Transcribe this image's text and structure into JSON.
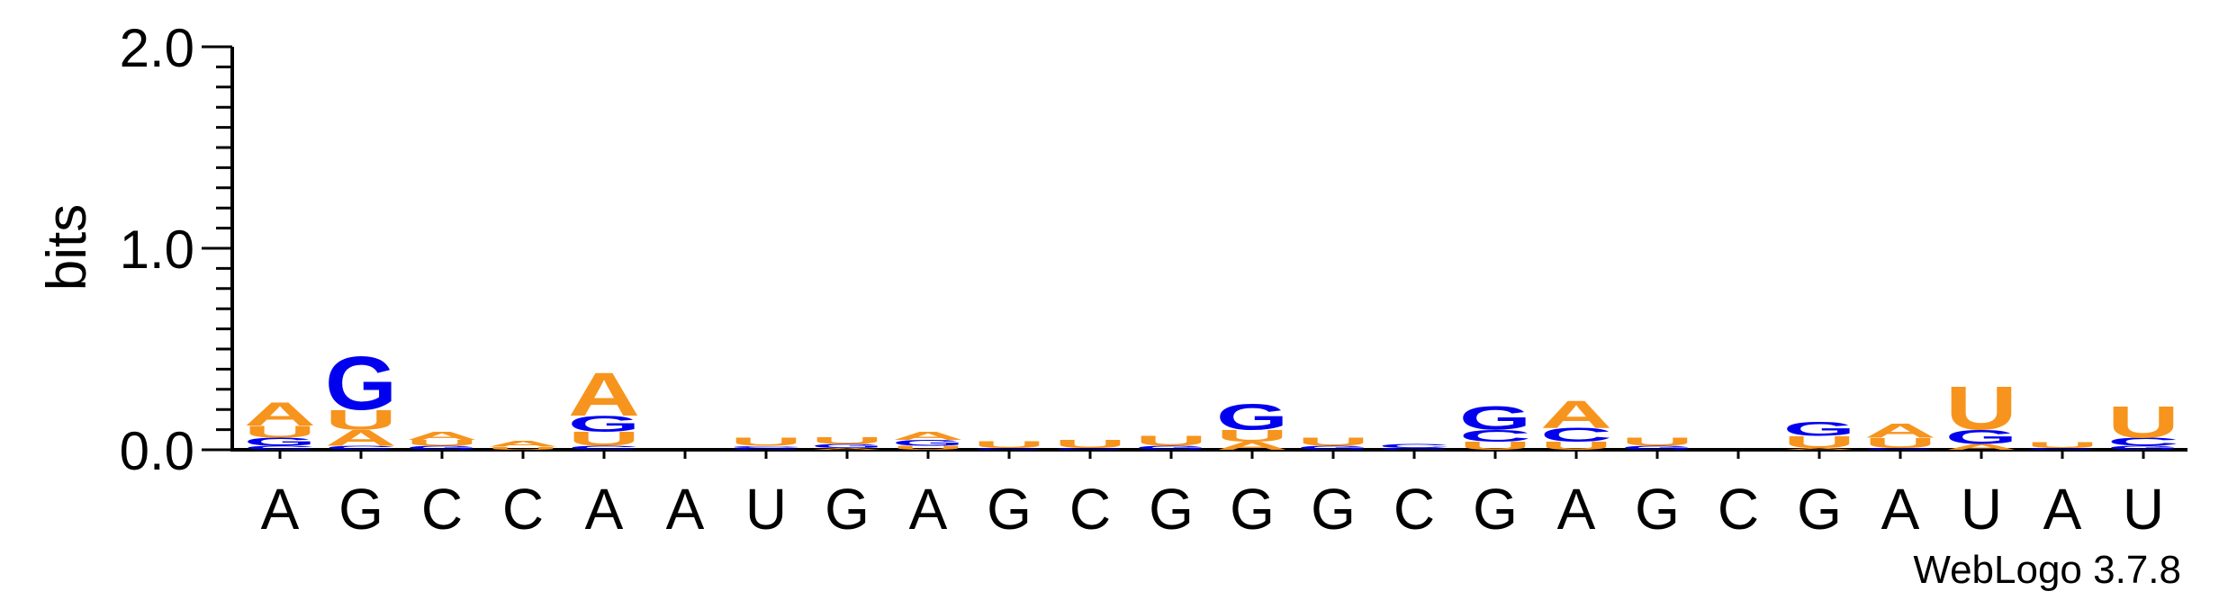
{
  "chart_data": {
    "type": "sequence-logo",
    "ylabel": "bits",
    "ylim": [
      0,
      2.0
    ],
    "yticks": [
      "0.0",
      "1.0",
      "2.0"
    ],
    "credit": "WebLogo 3.7.8",
    "colors": {
      "A": "#f7941d",
      "U": "#f7941d",
      "G": "#0000ee",
      "C": "#0000ee"
    },
    "positions": [
      {
        "label": "A",
        "stack": [
          {
            "l": "C",
            "h": 0.02
          },
          {
            "l": "G",
            "h": 0.04
          },
          {
            "l": "U",
            "h": 0.06
          },
          {
            "l": "A",
            "h": 0.12
          }
        ]
      },
      {
        "label": "G",
        "stack": [
          {
            "l": "C",
            "h": 0.02
          },
          {
            "l": "A",
            "h": 0.08
          },
          {
            "l": "U",
            "h": 0.1
          },
          {
            "l": "G",
            "h": 0.27
          }
        ]
      },
      {
        "label": "C",
        "stack": [
          {
            "l": "G",
            "h": 0.02
          },
          {
            "l": "U",
            "h": 0.03
          },
          {
            "l": "A",
            "h": 0.04
          }
        ]
      },
      {
        "label": "C",
        "stack": [
          {
            "l": "U",
            "h": 0.015
          },
          {
            "l": "A",
            "h": 0.03
          }
        ]
      },
      {
        "label": "A",
        "stack": [
          {
            "l": "C",
            "h": 0.02
          },
          {
            "l": "U",
            "h": 0.07
          },
          {
            "l": "G",
            "h": 0.08
          },
          {
            "l": "A",
            "h": 0.22
          }
        ]
      },
      {
        "label": "A",
        "stack": []
      },
      {
        "label": "U",
        "stack": [
          {
            "l": "G",
            "h": 0.01
          },
          {
            "l": "C",
            "h": 0.01
          },
          {
            "l": "U",
            "h": 0.04
          }
        ]
      },
      {
        "label": "G",
        "stack": [
          {
            "l": "A",
            "h": 0.01
          },
          {
            "l": "G",
            "h": 0.02
          },
          {
            "l": "U",
            "h": 0.035
          }
        ]
      },
      {
        "label": "A",
        "stack": [
          {
            "l": "U",
            "h": 0.02
          },
          {
            "l": "G",
            "h": 0.03
          },
          {
            "l": "A",
            "h": 0.04
          }
        ]
      },
      {
        "label": "G",
        "stack": [
          {
            "l": "G",
            "h": 0.01
          },
          {
            "l": "U",
            "h": 0.035
          }
        ]
      },
      {
        "label": "C",
        "stack": [
          {
            "l": "G",
            "h": 0.01
          },
          {
            "l": "U",
            "h": 0.04
          }
        ]
      },
      {
        "label": "G",
        "stack": [
          {
            "l": "G",
            "h": 0.02
          },
          {
            "l": "U",
            "h": 0.05
          }
        ]
      },
      {
        "label": "G",
        "stack": [
          {
            "l": "A",
            "h": 0.04
          },
          {
            "l": "U",
            "h": 0.06
          },
          {
            "l": "G",
            "h": 0.13
          }
        ]
      },
      {
        "label": "G",
        "stack": [
          {
            "l": "G",
            "h": 0.02
          },
          {
            "l": "U",
            "h": 0.04
          }
        ]
      },
      {
        "label": "C",
        "stack": [
          {
            "l": "G",
            "h": 0.01
          },
          {
            "l": "C",
            "h": 0.02
          }
        ]
      },
      {
        "label": "G",
        "stack": [
          {
            "l": "U",
            "h": 0.04
          },
          {
            "l": "C",
            "h": 0.06
          },
          {
            "l": "G",
            "h": 0.12
          }
        ]
      },
      {
        "label": "A",
        "stack": [
          {
            "l": "U",
            "h": 0.04
          },
          {
            "l": "C",
            "h": 0.07
          },
          {
            "l": "A",
            "h": 0.14
          }
        ]
      },
      {
        "label": "G",
        "stack": [
          {
            "l": "G",
            "h": 0.02
          },
          {
            "l": "U",
            "h": 0.04
          }
        ]
      },
      {
        "label": "C",
        "stack": []
      },
      {
        "label": "G",
        "stack": [
          {
            "l": "A",
            "h": 0.01
          },
          {
            "l": "U",
            "h": 0.06
          },
          {
            "l": "G",
            "h": 0.07
          }
        ]
      },
      {
        "label": "A",
        "stack": [
          {
            "l": "G",
            "h": 0.01
          },
          {
            "l": "U",
            "h": 0.05
          },
          {
            "l": "A",
            "h": 0.07
          }
        ]
      },
      {
        "label": "U",
        "stack": [
          {
            "l": "A",
            "h": 0.03
          },
          {
            "l": "G",
            "h": 0.07
          },
          {
            "l": "U",
            "h": 0.22
          }
        ]
      },
      {
        "label": "A",
        "stack": [
          {
            "l": "G",
            "h": 0.01
          },
          {
            "l": "U",
            "h": 0.03
          }
        ]
      },
      {
        "label": "U",
        "stack": [
          {
            "l": "G",
            "h": 0.02
          },
          {
            "l": "C",
            "h": 0.04
          },
          {
            "l": "U",
            "h": 0.16
          }
        ]
      }
    ]
  }
}
